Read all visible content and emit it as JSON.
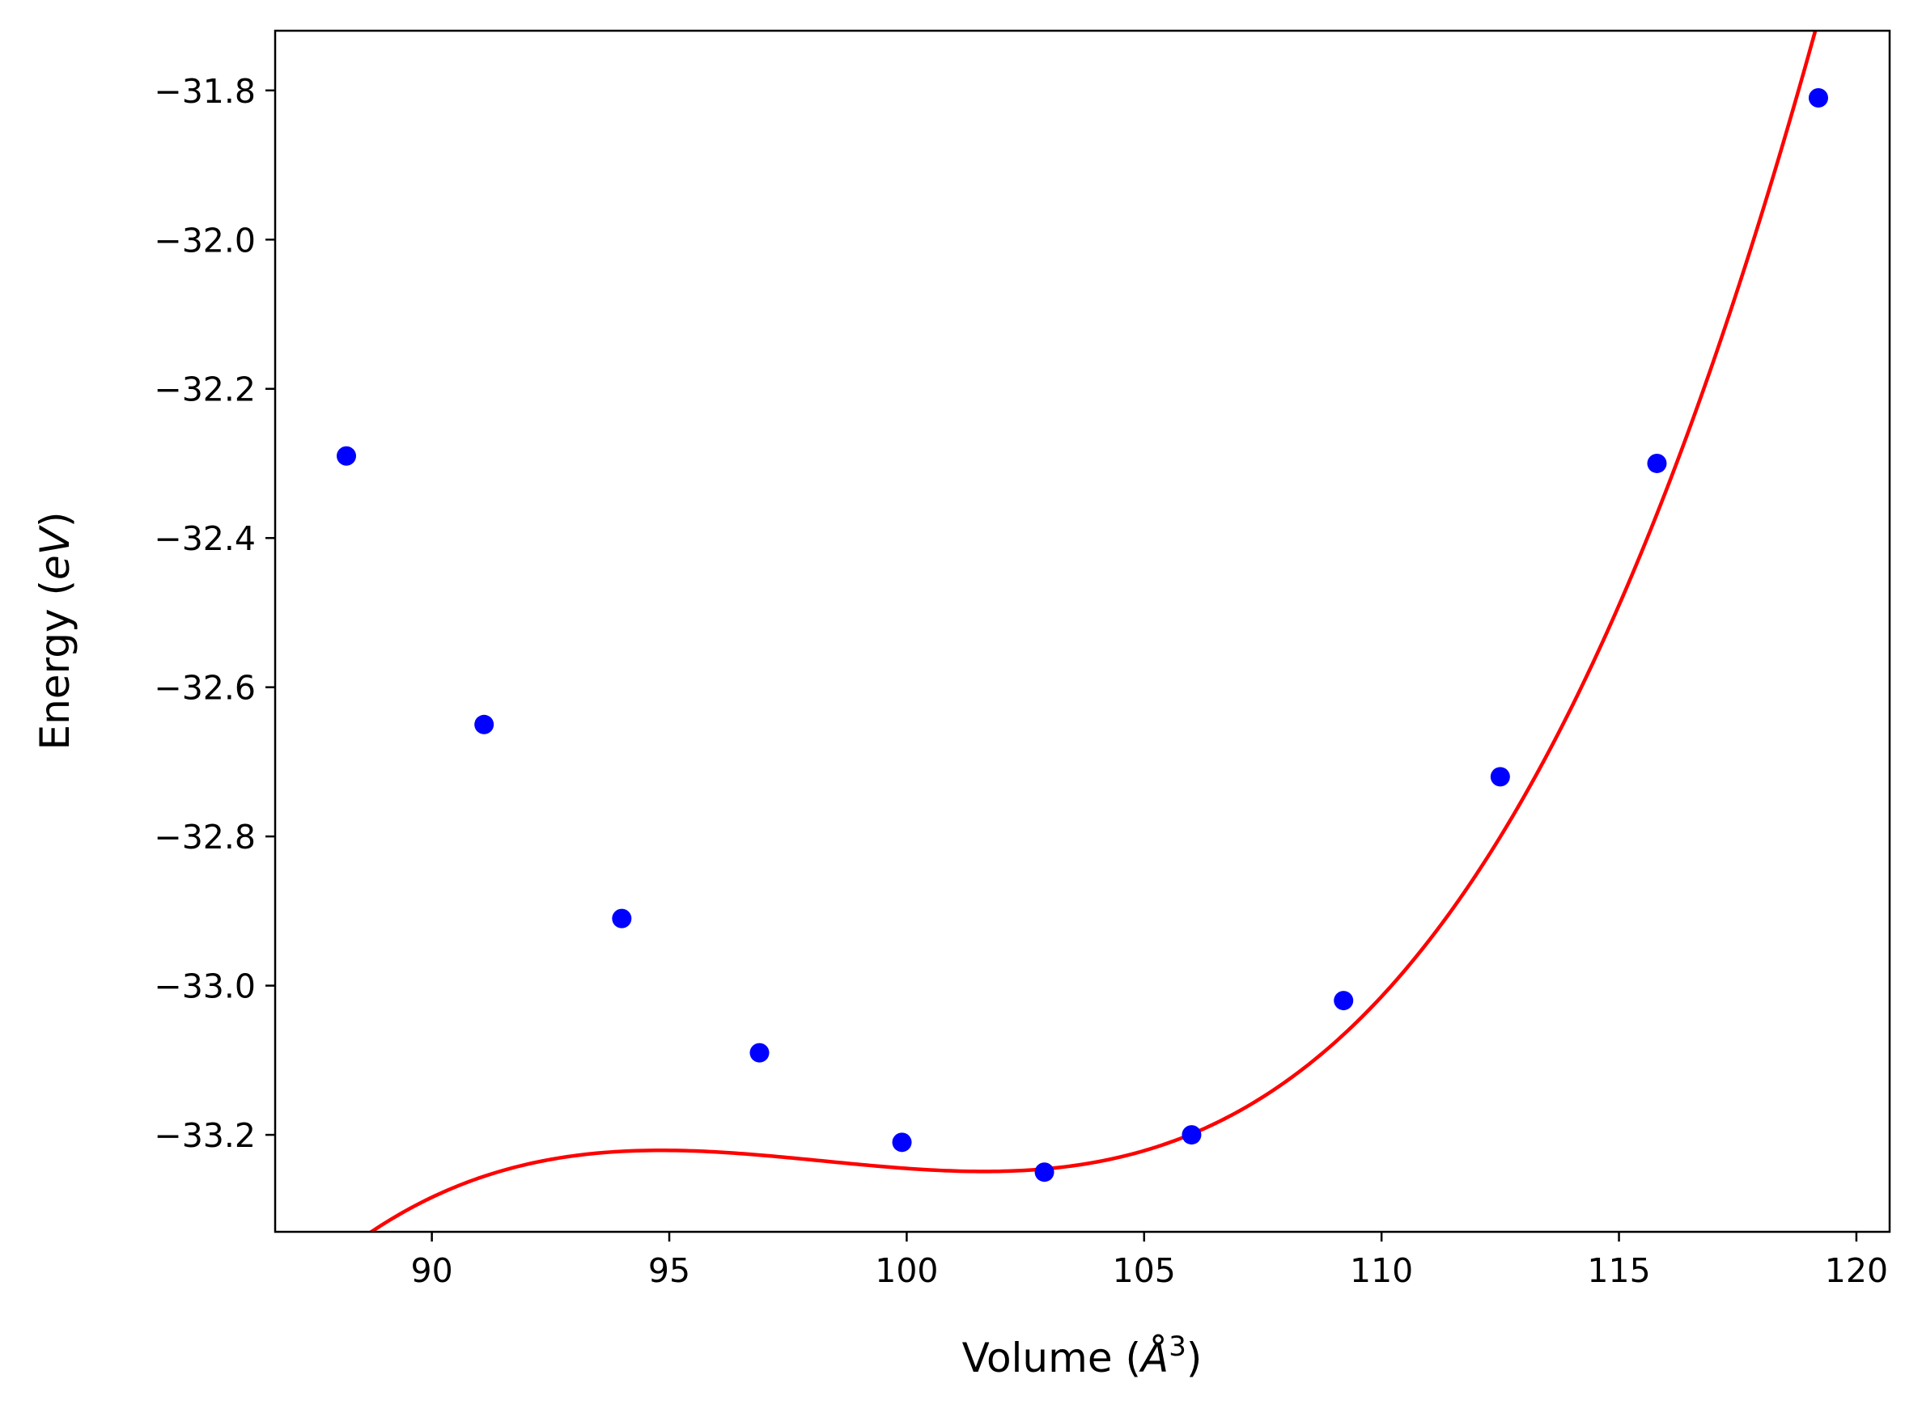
{
  "chart_data": {
    "type": "scatter",
    "title": "",
    "xlabel": "Volume (Å³)",
    "ylabel": "Energy (eV)",
    "xlabel_parts": {
      "prefix": "Volume (",
      "symbol": "Å",
      "sup": "3",
      "suffix": ")"
    },
    "ylabel_parts": {
      "prefix": "Energy (",
      "unit": "eV",
      "suffix": ")"
    },
    "xlim": [
      86.7,
      120.7
    ],
    "ylim": [
      -33.33,
      -31.72
    ],
    "xticks": [
      90,
      95,
      100,
      105,
      110,
      115,
      120
    ],
    "xtick_labels": [
      "90",
      "95",
      "100",
      "105",
      "110",
      "115",
      "120"
    ],
    "yticks": [
      -33.2,
      -33.0,
      -32.8,
      -32.6,
      -32.4,
      -32.2,
      -32.0,
      -31.8
    ],
    "ytick_labels": [
      "−33.2",
      "−33.0",
      "−32.8",
      "−32.6",
      "−32.4",
      "−32.2",
      "−32.0",
      "−31.8"
    ],
    "grid": false,
    "legend": "none",
    "series": [
      {
        "kind": "scatter",
        "color": "#0000ff",
        "x": [
          88.2,
          91.1,
          94.0,
          96.9,
          99.9,
          102.9,
          106.0,
          109.2,
          112.5,
          115.8,
          119.2
        ],
        "y": [
          -32.29,
          -32.65,
          -32.91,
          -33.09,
          -33.21,
          -33.25,
          -33.2,
          -33.02,
          -32.72,
          -32.3,
          -31.81
        ]
      },
      {
        "kind": "line",
        "color": "#ff0000",
        "fit": "polynomial",
        "coefficients": [
          0.00018,
          0.0022,
          0.00272,
          -33.2482
        ],
        "center": 102.3,
        "x_range": [
          88.2,
          119.2
        ]
      }
    ]
  }
}
